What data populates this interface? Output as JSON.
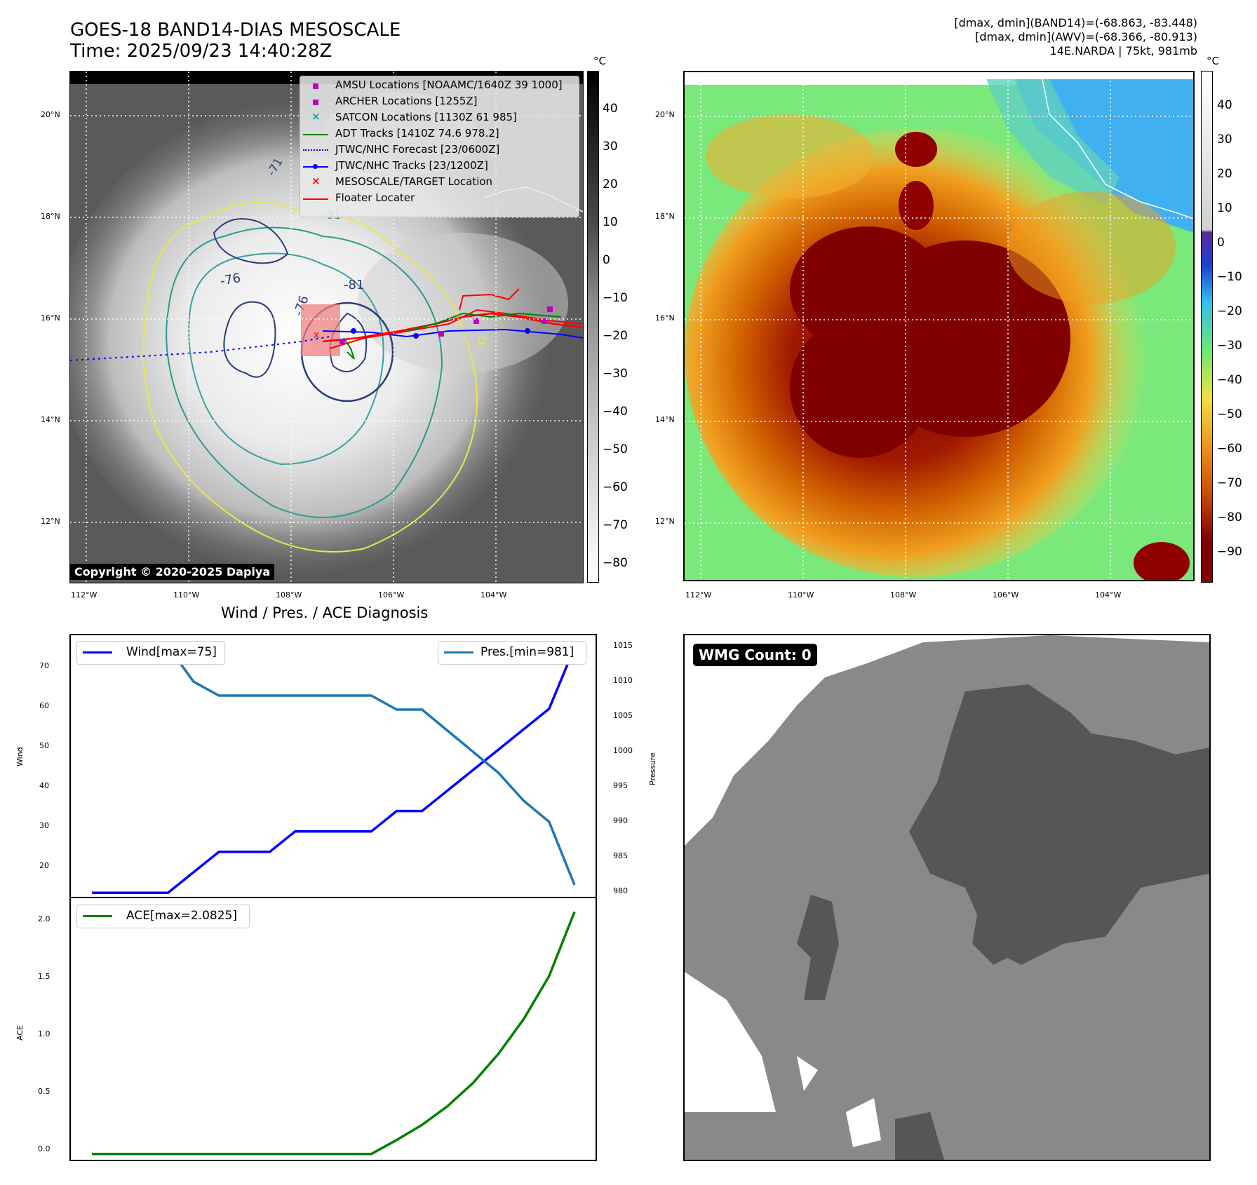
{
  "header": {
    "title_line1": "GOES-18 BAND14-DIAS MESOSCALE",
    "title_line2": "Time: 2025/09/23 14:40:28Z",
    "info_line1": "[dmax, dmin](BAND14)=(-68.863, -83.448)",
    "info_line2": "[dmax, dmin](AWV)=(-68.366, -80.913)",
    "info_line3": "14E.NARDA | 75kt, 981mb"
  },
  "map": {
    "lat_labels": [
      "20°N",
      "18°N",
      "16°N",
      "14°N",
      "12°N"
    ],
    "lon_labels": [
      "112°W",
      "110°W",
      "108°W",
      "106°W",
      "104°W"
    ],
    "copyright": "Copyright © 2020-2025 Dapiya",
    "contour_labels": [
      "-76",
      "-81",
      "-76",
      "-31",
      "-71",
      "-31"
    ],
    "legend": [
      {
        "label": "AMSU Locations [NOAAMC/1640Z 39 1000]",
        "color": "#c000c0",
        "marker": "square"
      },
      {
        "label": "ARCHER Locations [1255Z]",
        "color": "#c000c0",
        "marker": "square"
      },
      {
        "label": "SATCON Locations [1130Z 61 985]",
        "color": "#00b0b0",
        "marker": "x"
      },
      {
        "label": "ADT Tracks [1410Z 74.6 978.2]",
        "color": "#008000",
        "marker": "line"
      },
      {
        "label": "JTWC/NHC Forecast [23/0600Z]",
        "color": "#0000ff",
        "marker": "dotted"
      },
      {
        "label": "JTWC/NHC Tracks [23/1200Z]",
        "color": "#0000ff",
        "marker": "line-dot"
      },
      {
        "label": "MESOSCALE/TARGET Location",
        "color": "#ff0000",
        "marker": "x"
      },
      {
        "label": "Floater Locater",
        "color": "#ff0000",
        "marker": "line"
      }
    ]
  },
  "colorbar_left": {
    "unit": "°C",
    "ticks": [
      "40",
      "30",
      "20",
      "10",
      "0",
      "−10",
      "−20",
      "−30",
      "−40",
      "−50",
      "−60",
      "−70",
      "−80"
    ]
  },
  "colorbar_right": {
    "unit": "°C",
    "ticks": [
      "40",
      "30",
      "20",
      "10",
      "0",
      "−10",
      "−20",
      "−30",
      "−40",
      "−50",
      "−60",
      "−70",
      "−80",
      "−90"
    ]
  },
  "diag": {
    "title": "Wind / Pres. / ACE Diagnosis",
    "wind_legend": "Wind[max=75]",
    "pres_legend": "Pres.[min=981]",
    "ace_legend": "ACE[max=2.0825]",
    "wind_ylabel": "Wind",
    "pres_ylabel": "Pressure",
    "ace_ylabel": "ACE",
    "wind_ticks": [
      "70",
      "60",
      "50",
      "40",
      "30",
      "20"
    ],
    "pres_ticks": [
      "1015",
      "1010",
      "1005",
      "1000",
      "995",
      "990",
      "985",
      "980"
    ],
    "ace_ticks": [
      "2.0",
      "1.5",
      "1.0",
      "0.5",
      "0.0"
    ]
  },
  "wmg": {
    "label": "WMG Count: 0"
  },
  "chart_data": [
    {
      "type": "line",
      "title": "Wind / Pres. / ACE Diagnosis",
      "x": [
        0,
        1,
        2,
        3,
        4,
        5,
        6,
        7,
        8,
        9,
        10,
        11,
        12,
        13,
        14,
        15,
        16,
        17,
        18,
        19
      ],
      "series": [
        {
          "name": "Wind[max=75]",
          "axis": "left",
          "color": "#0000ff",
          "values": [
            15,
            15,
            15,
            15,
            20,
            25,
            25,
            25,
            30,
            30,
            30,
            30,
            35,
            35,
            40,
            45,
            50,
            55,
            60,
            75
          ]
        },
        {
          "name": "Pres.[min=981]",
          "axis": "right",
          "color": "#1f77b4",
          "values": [
            1015,
            1015,
            1015,
            1015,
            1010,
            1008,
            1008,
            1008,
            1008,
            1008,
            1008,
            1008,
            1006,
            1006,
            1003,
            1000,
            997,
            993,
            990,
            981
          ]
        }
      ],
      "ylabel": "Wind",
      "ylim": [
        14,
        78
      ],
      "y2label": "Pressure",
      "y2lim": [
        979.3,
        1016.6
      ]
    },
    {
      "type": "line",
      "x": [
        0,
        1,
        2,
        3,
        4,
        5,
        6,
        7,
        8,
        9,
        10,
        11,
        12,
        13,
        14,
        15,
        16,
        17,
        18,
        19
      ],
      "series": [
        {
          "name": "ACE[max=2.0825]",
          "color": "#008000",
          "values": [
            0,
            0,
            0,
            0,
            0,
            0,
            0,
            0,
            0,
            0,
            0,
            0,
            0.12,
            0.25,
            0.41,
            0.61,
            0.86,
            1.16,
            1.53,
            2.0825
          ]
        }
      ],
      "ylabel": "ACE",
      "ylim": [
        -0.05,
        2.2
      ]
    }
  ]
}
